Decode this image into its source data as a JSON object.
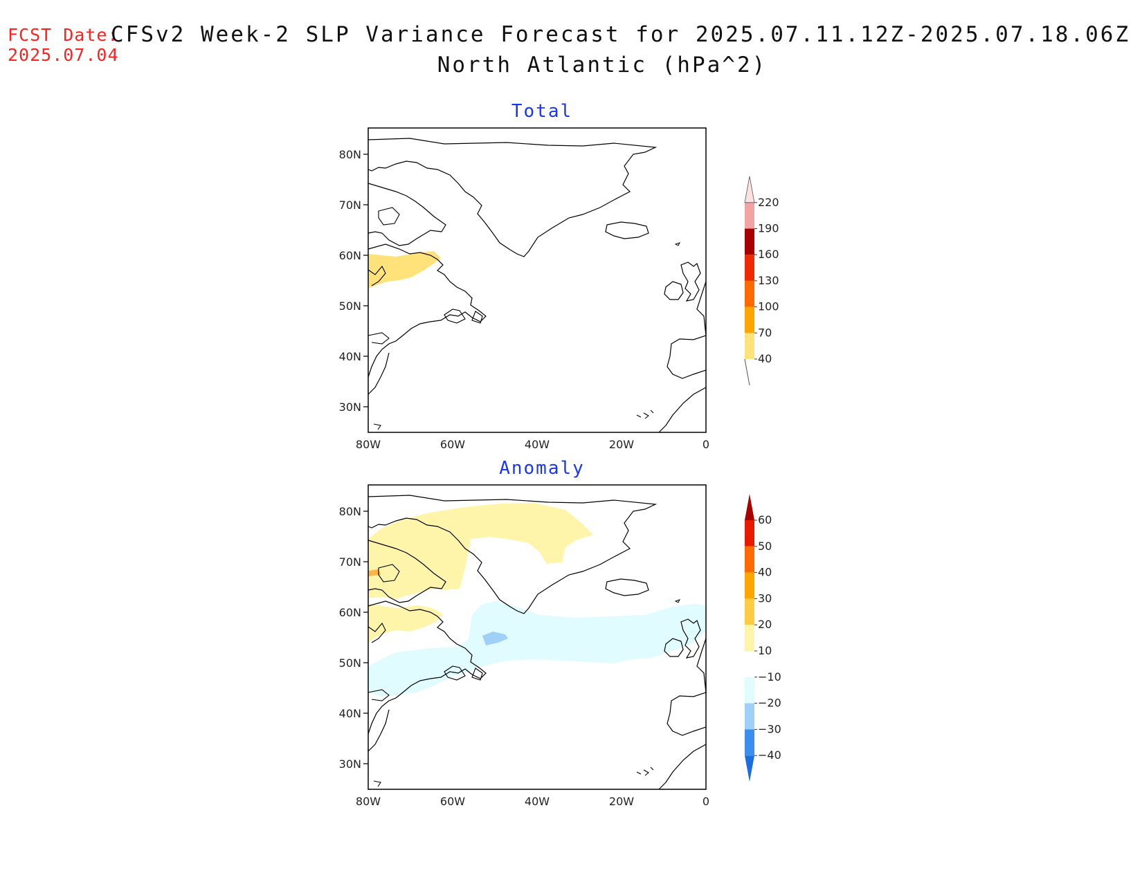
{
  "header": {
    "fcst_label": "FCST Date:",
    "fcst_date": "2025.07.04",
    "title_line1": "CFSv2 Week-2 SLP Variance Forecast for 2025.07.11.12Z-2025.07.18.06Z",
    "title_line2": "North Atlantic (hPa^2)"
  },
  "panels": [
    {
      "title": "Total",
      "lat_labels": [
        "80N",
        "70N",
        "60N",
        "50N",
        "40N",
        "30N"
      ],
      "lon_labels": [
        "80W",
        "60W",
        "40W",
        "20W",
        "0"
      ],
      "colorbar": {
        "levels": [
          "40",
          "70",
          "100",
          "130",
          "160",
          "190",
          "220"
        ],
        "colors": [
          "#ffe27a",
          "#ffa500",
          "#ff6a00",
          "#ee2a00",
          "#a80000",
          "#f2a4a4",
          "#fde0e0"
        ]
      }
    },
    {
      "title": "Anomaly",
      "lat_labels": [
        "80N",
        "70N",
        "60N",
        "50N",
        "40N",
        "30N"
      ],
      "lon_labels": [
        "80W",
        "60W",
        "40W",
        "20W",
        "0"
      ],
      "colorbar": {
        "levels": [
          "60",
          "50",
          "40",
          "30",
          "20",
          "10",
          "−10",
          "−20",
          "−30",
          "−40"
        ],
        "colors": [
          "#a80000",
          "#e81a00",
          "#ff6a00",
          "#ffa500",
          "#ffcc44",
          "#fff5aa",
          "#ffffff",
          "#e0fcff",
          "#9fd0f7",
          "#3a8ef0",
          "#1a6ee0"
        ]
      }
    }
  ]
}
